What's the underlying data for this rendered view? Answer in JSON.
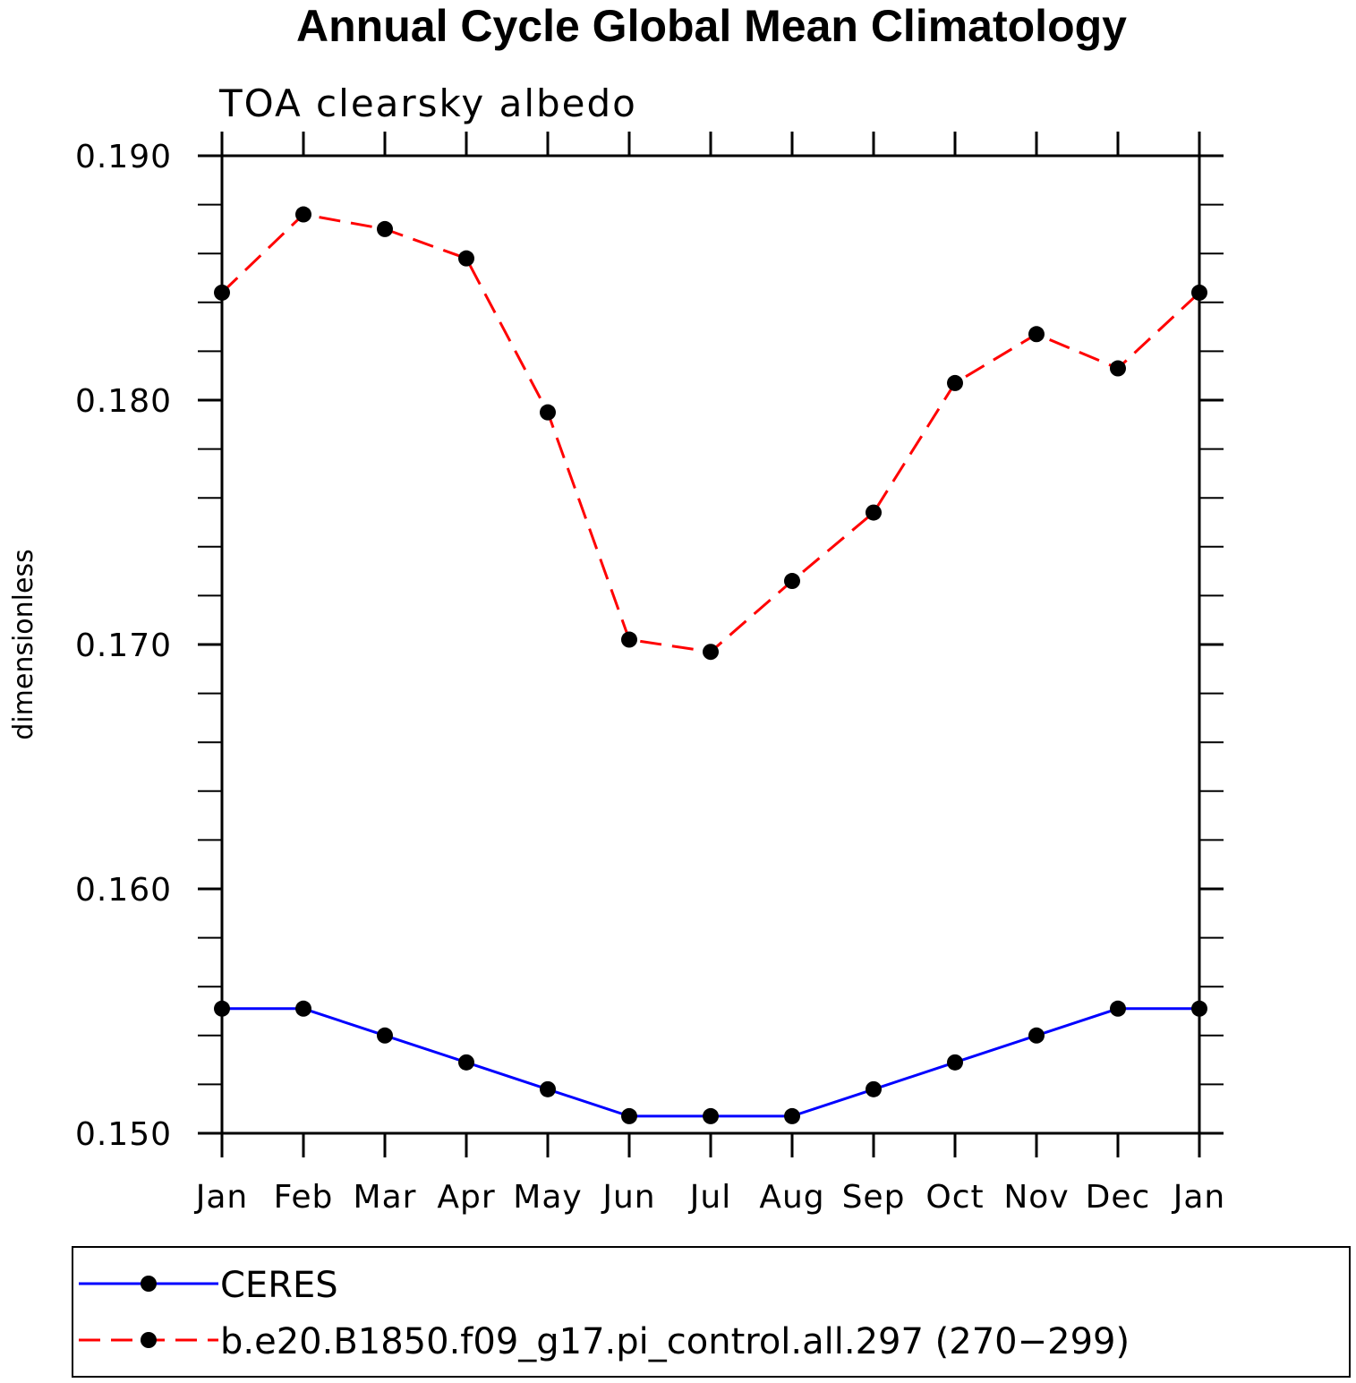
{
  "chart_data": {
    "type": "line",
    "title": "Annual Cycle Global Mean Climatology",
    "subtitle": "TOA clearsky albedo",
    "xlabel": "",
    "ylabel": "dimensionless",
    "categories": [
      "Jan",
      "Feb",
      "Mar",
      "Apr",
      "May",
      "Jun",
      "Jul",
      "Aug",
      "Sep",
      "Oct",
      "Nov",
      "Dec",
      "Jan"
    ],
    "ylim": [
      0.15,
      0.19
    ],
    "yticks": [
      0.15,
      0.16,
      0.17,
      0.18,
      0.19
    ],
    "ytick_labels": [
      "0.150",
      "0.160",
      "0.170",
      "0.180",
      "0.190"
    ],
    "y_minor_step": 0.002,
    "legend_position": "bottom",
    "series": [
      {
        "name": "CERES",
        "color": "#0000ff",
        "style": "solid",
        "marker": "circle",
        "values": [
          0.1551,
          0.1551,
          0.154,
          0.1529,
          0.1518,
          0.1507,
          0.1507,
          0.1507,
          0.1518,
          0.1529,
          0.154,
          0.1551,
          0.1551
        ]
      },
      {
        "name": "b.e20.B1850.f09_g17.pi_control.all.297 (270−299)",
        "color": "#ff0000",
        "style": "dashed",
        "marker": "circle",
        "values": [
          0.1844,
          0.1876,
          0.187,
          0.1858,
          0.1795,
          0.1702,
          0.1697,
          0.1726,
          0.1754,
          0.1807,
          0.1827,
          0.1813,
          0.1844
        ]
      }
    ]
  }
}
